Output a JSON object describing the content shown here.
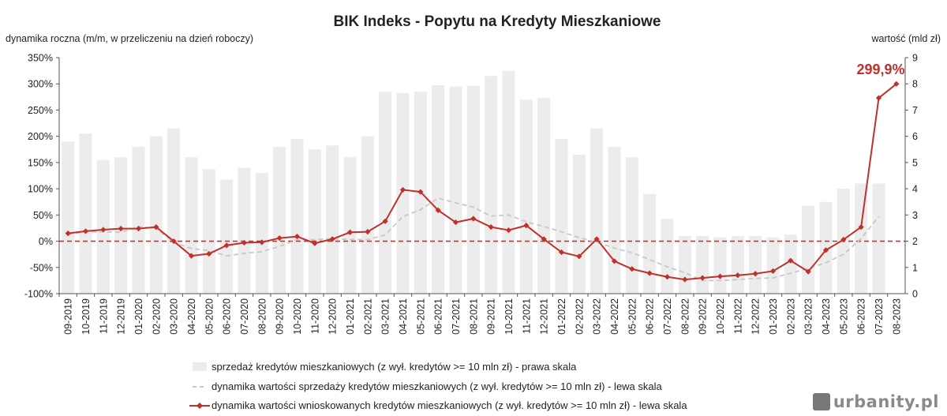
{
  "chart_data": {
    "type": "bar+line",
    "title": "BIK Indeks - Popytu na Kredyty Mieszkaniowe",
    "ylabel_left": "dynamika roczna (m/m, w przeliczeniu na dzień roboczy)",
    "ylabel_right": "wartość (mld zł)",
    "ylim_left": [
      -100,
      350
    ],
    "ylim_right": [
      0,
      9
    ],
    "yticks_left": [
      "-100%",
      "-50%",
      "0%",
      "50%",
      "100%",
      "150%",
      "200%",
      "250%",
      "300%",
      "350%"
    ],
    "yticks_right": [
      "0",
      "1",
      "2",
      "3",
      "4",
      "5",
      "6",
      "7",
      "8",
      "9"
    ],
    "categories": [
      "09-2019",
      "10-2019",
      "11-2019",
      "12-2019",
      "01-2020",
      "02-2020",
      "03-2020",
      "04-2020",
      "05-2020",
      "06-2020",
      "07-2020",
      "08-2020",
      "09-2020",
      "10-2020",
      "11-2020",
      "12-2020",
      "01-2021",
      "02-2021",
      "03-2021",
      "04-2021",
      "05-2021",
      "06-2021",
      "07-2021",
      "08-2021",
      "09-2021",
      "10-2021",
      "11-2021",
      "12-2021",
      "01-2022",
      "02-2022",
      "03-2022",
      "04-2022",
      "05-2022",
      "06-2022",
      "07-2022",
      "08-2022",
      "09-2022",
      "10-2022",
      "11-2022",
      "12-2022",
      "01-2023",
      "02-2023",
      "03-2023",
      "04-2023",
      "05-2023",
      "06-2023",
      "07-2023",
      "08-2023"
    ],
    "series": [
      {
        "name": "sprzedaż kredytów mieszkaniowych (z wył. kredytów >= 10 mln zł) - prawa skala",
        "type": "bar",
        "axis": "right",
        "color": "#ececec",
        "values": [
          5.8,
          6.1,
          5.1,
          5.2,
          5.6,
          6.0,
          6.3,
          5.2,
          4.75,
          4.35,
          4.8,
          4.6,
          5.6,
          5.9,
          5.5,
          5.65,
          5.2,
          6.0,
          7.7,
          7.65,
          7.7,
          7.95,
          7.9,
          7.92,
          8.3,
          8.5,
          7.4,
          7.47,
          5.9,
          5.3,
          6.3,
          5.6,
          5.2,
          3.8,
          2.85,
          2.2,
          2.2,
          2.15,
          2.2,
          2.2,
          2.15,
          2.25,
          3.35,
          3.5,
          4.0,
          4.2,
          4.2,
          null
        ]
      },
      {
        "name": "dynamika wartości sprzedaży kredytów mieszkaniowych (z wył. kredytów >= 10 mln zł) - lewa skala",
        "type": "line",
        "axis": "left",
        "color": "#c8c8c8",
        "dashed": true,
        "values": [
          13,
          18,
          18,
          17,
          28,
          24,
          -2,
          -14,
          -18,
          -28,
          -23,
          -20,
          -10,
          3,
          3,
          5,
          3,
          3,
          12,
          47,
          60,
          82,
          73,
          65,
          48,
          50,
          37,
          28,
          18,
          7,
          -2,
          -13,
          -22,
          -35,
          -49,
          -60,
          -75,
          -75,
          -73,
          -71,
          -70,
          -61,
          -52,
          -41,
          -25,
          5,
          47,
          null
        ]
      },
      {
        "name": "dynamika wartości wnioskowanych kredytów mieszkaniowych (z wył. kredytów >= 10 mln zł) - lewa skala",
        "type": "line",
        "axis": "left",
        "color": "#c0312b",
        "marker": "diamond",
        "values": [
          15,
          19,
          22,
          24,
          24,
          27,
          0,
          -28,
          -24,
          -8,
          -3,
          -2,
          6,
          9,
          -4,
          4,
          17,
          18,
          38,
          98,
          94,
          59,
          36,
          43,
          27,
          21,
          30,
          4,
          -21,
          -29,
          4,
          -38,
          -53,
          -61,
          -68,
          -73,
          -70,
          -67,
          -65,
          -62,
          -57,
          -37,
          -58,
          -17,
          3,
          27,
          273,
          299.9
        ]
      }
    ],
    "annotation": "299,9%",
    "annotation_color": "#c0312b",
    "reference_line": {
      "value": 0,
      "axis": "left",
      "color": "#d2302b",
      "dashed": true
    },
    "legend_position": "bottom",
    "grid": false
  },
  "watermark": {
    "text": "urbanity.pl",
    "icon": "building-icon"
  }
}
